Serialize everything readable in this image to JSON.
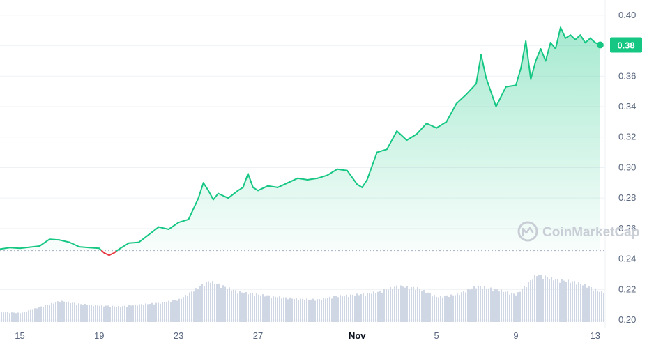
{
  "watermark": {
    "text": "CoinMarketCap"
  },
  "current_price": {
    "label": "0.38",
    "value": 0.3805
  },
  "colors": {
    "up": "#16c784",
    "down": "#ea3943",
    "area_top": "#16c784",
    "volume": "#cfd6e4",
    "grid": "#eff2f5",
    "axis_text": "#58667e",
    "baseline": "#a6b0c3"
  },
  "chart_data": {
    "type": "line",
    "title": "",
    "xlabel": "",
    "ylabel": "",
    "grid": true,
    "area_fill": true,
    "reference_price": 0.2455,
    "x_range": [
      "2023-10-14",
      "2023-11-13T12:00"
    ],
    "ylim": [
      0.195,
      0.41
    ],
    "y_ticks": [
      "0.20",
      "0.22",
      "0.24",
      "0.26",
      "0.28",
      "0.30",
      "0.32",
      "0.34",
      "0.36",
      "0.38",
      "0.40"
    ],
    "x_ticks": [
      {
        "label": "15",
        "date": "2023-10-15"
      },
      {
        "label": "19",
        "date": "2023-10-19"
      },
      {
        "label": "23",
        "date": "2023-10-23"
      },
      {
        "label": "27",
        "date": "2023-10-27"
      },
      {
        "label": "Nov",
        "date": "2023-11-01",
        "bold": true
      },
      {
        "label": "5",
        "date": "2023-11-05"
      },
      {
        "label": "9",
        "date": "2023-11-09"
      },
      {
        "label": "13",
        "date": "2023-11-13"
      }
    ],
    "series": [
      {
        "price": [
          [
            "2023-10-14T00:00",
            0.2465
          ],
          [
            "2023-10-14T12:00",
            0.2475
          ],
          [
            "2023-10-15T00:00",
            0.247
          ],
          [
            "2023-10-15T12:00",
            0.2478
          ],
          [
            "2023-10-16T00:00",
            0.2485
          ],
          [
            "2023-10-16T12:00",
            0.253
          ],
          [
            "2023-10-17T00:00",
            0.2525
          ],
          [
            "2023-10-17T12:00",
            0.251
          ],
          [
            "2023-10-18T00:00",
            0.248
          ],
          [
            "2023-10-18T12:00",
            0.2475
          ],
          [
            "2023-10-19T00:00",
            0.247
          ],
          [
            "2023-10-19T06:00",
            0.244
          ],
          [
            "2023-10-19T12:00",
            0.2425
          ],
          [
            "2023-10-19T18:00",
            0.244
          ],
          [
            "2023-10-20T00:00",
            0.2465
          ],
          [
            "2023-10-20T12:00",
            0.2505
          ],
          [
            "2023-10-21T00:00",
            0.251
          ],
          [
            "2023-10-21T12:00",
            0.256
          ],
          [
            "2023-10-22T00:00",
            0.261
          ],
          [
            "2023-10-22T12:00",
            0.2595
          ],
          [
            "2023-10-23T00:00",
            0.264
          ],
          [
            "2023-10-23T12:00",
            0.266
          ],
          [
            "2023-10-24T00:00",
            0.28
          ],
          [
            "2023-10-24T06:00",
            0.29
          ],
          [
            "2023-10-24T12:00",
            0.285
          ],
          [
            "2023-10-24T18:00",
            0.279
          ],
          [
            "2023-10-25T00:00",
            0.283
          ],
          [
            "2023-10-25T12:00",
            0.28
          ],
          [
            "2023-10-26T00:00",
            0.285
          ],
          [
            "2023-10-26T06:00",
            0.287
          ],
          [
            "2023-10-26T12:00",
            0.296
          ],
          [
            "2023-10-26T18:00",
            0.287
          ],
          [
            "2023-10-27T00:00",
            0.285
          ],
          [
            "2023-10-27T12:00",
            0.288
          ],
          [
            "2023-10-28T00:00",
            0.287
          ],
          [
            "2023-10-28T12:00",
            0.29
          ],
          [
            "2023-10-29T00:00",
            0.293
          ],
          [
            "2023-10-29T12:00",
            0.292
          ],
          [
            "2023-10-30T00:00",
            0.293
          ],
          [
            "2023-10-30T12:00",
            0.295
          ],
          [
            "2023-10-31T00:00",
            0.299
          ],
          [
            "2023-10-31T12:00",
            0.298
          ],
          [
            "2023-11-01T00:00",
            0.289
          ],
          [
            "2023-11-01T06:00",
            0.287
          ],
          [
            "2023-11-01T12:00",
            0.292
          ],
          [
            "2023-11-02T00:00",
            0.31
          ],
          [
            "2023-11-02T12:00",
            0.312
          ],
          [
            "2023-11-03T00:00",
            0.324
          ],
          [
            "2023-11-03T12:00",
            0.318
          ],
          [
            "2023-11-04T00:00",
            0.322
          ],
          [
            "2023-11-04T12:00",
            0.329
          ],
          [
            "2023-11-05T00:00",
            0.326
          ],
          [
            "2023-11-05T12:00",
            0.33
          ],
          [
            "2023-11-06T00:00",
            0.342
          ],
          [
            "2023-11-06T12:00",
            0.348
          ],
          [
            "2023-11-07T00:00",
            0.355
          ],
          [
            "2023-11-07T06:00",
            0.374
          ],
          [
            "2023-11-07T12:00",
            0.359
          ],
          [
            "2023-11-08T00:00",
            0.34
          ],
          [
            "2023-11-08T12:00",
            0.353
          ],
          [
            "2023-11-09T00:00",
            0.354
          ],
          [
            "2023-11-09T06:00",
            0.365
          ],
          [
            "2023-11-09T12:00",
            0.383
          ],
          [
            "2023-11-09T18:00",
            0.358
          ],
          [
            "2023-11-10T00:00",
            0.37
          ],
          [
            "2023-11-10T06:00",
            0.378
          ],
          [
            "2023-11-10T12:00",
            0.37
          ],
          [
            "2023-11-10T18:00",
            0.382
          ],
          [
            "2023-11-11T00:00",
            0.378
          ],
          [
            "2023-11-11T06:00",
            0.392
          ],
          [
            "2023-11-11T12:00",
            0.385
          ],
          [
            "2023-11-11T18:00",
            0.387
          ],
          [
            "2023-11-12T00:00",
            0.384
          ],
          [
            "2023-11-12T06:00",
            0.387
          ],
          [
            "2023-11-12T12:00",
            0.382
          ],
          [
            "2023-11-12T18:00",
            0.385
          ],
          [
            "2023-11-13T00:00",
            0.382
          ],
          [
            "2023-11-13T06:00",
            0.3805
          ]
        ],
        "volume": [
          [
            "2023-10-14T00:00",
            0.2
          ],
          [
            "2023-10-15T00:00",
            0.18
          ],
          [
            "2023-10-16T00:00",
            0.3
          ],
          [
            "2023-10-17T00:00",
            0.42
          ],
          [
            "2023-10-18T00:00",
            0.36
          ],
          [
            "2023-10-19T00:00",
            0.33
          ],
          [
            "2023-10-20T00:00",
            0.31
          ],
          [
            "2023-10-21T00:00",
            0.35
          ],
          [
            "2023-10-22T00:00",
            0.38
          ],
          [
            "2023-10-23T00:00",
            0.45
          ],
          [
            "2023-10-24T00:00",
            0.7
          ],
          [
            "2023-10-24T12:00",
            0.82
          ],
          [
            "2023-10-25T00:00",
            0.75
          ],
          [
            "2023-10-26T00:00",
            0.6
          ],
          [
            "2023-10-27T00:00",
            0.55
          ],
          [
            "2023-10-28T00:00",
            0.5
          ],
          [
            "2023-10-29T00:00",
            0.46
          ],
          [
            "2023-10-30T00:00",
            0.45
          ],
          [
            "2023-10-31T00:00",
            0.52
          ],
          [
            "2023-11-01T00:00",
            0.55
          ],
          [
            "2023-11-02T00:00",
            0.6
          ],
          [
            "2023-11-03T00:00",
            0.72
          ],
          [
            "2023-11-04T00:00",
            0.68
          ],
          [
            "2023-11-05T00:00",
            0.5
          ],
          [
            "2023-11-06T00:00",
            0.55
          ],
          [
            "2023-11-07T00:00",
            0.72
          ],
          [
            "2023-11-08T00:00",
            0.65
          ],
          [
            "2023-11-09T00:00",
            0.55
          ],
          [
            "2023-11-10T00:00",
            0.95
          ],
          [
            "2023-11-10T12:00",
            0.9
          ],
          [
            "2023-11-11T00:00",
            0.85
          ],
          [
            "2023-11-12T00:00",
            0.8
          ],
          [
            "2023-11-13T00:00",
            0.65
          ],
          [
            "2023-11-13T06:00",
            0.6
          ]
        ]
      }
    ]
  }
}
